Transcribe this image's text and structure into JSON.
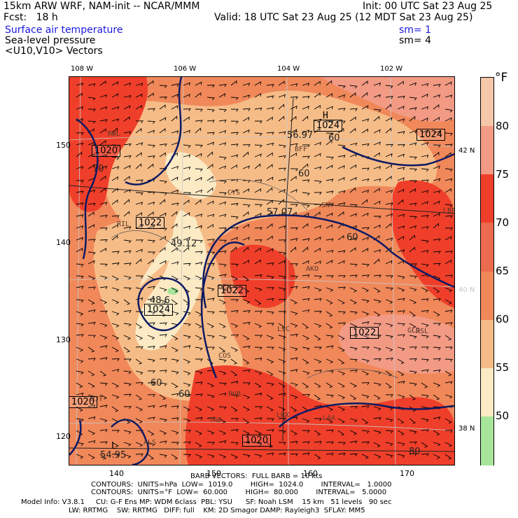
{
  "header": {
    "model_title": "15km ARW WRF, NAM-init -- NCAR/MMM",
    "fcst_label": "Fcst:   18 h",
    "init": "Init: 00 UTC Sat 23 Aug 25",
    "valid": "Valid: 18 UTC Sat 23 Aug 25 (12 MDT Sat 23 Aug 25)",
    "fields": [
      {
        "name": "Surface air temperature",
        "sm": "sm= 1",
        "color": "#1a1adc"
      },
      {
        "name": "Sea-level pressure",
        "sm": "sm= 4",
        "color": "#000000"
      },
      {
        "name": "<U10,V10> Vectors",
        "sm": "",
        "color": "#000000"
      }
    ]
  },
  "map": {
    "top_longitudes": [
      "108 W",
      "106 W",
      "104 W",
      "102 W"
    ],
    "right_latitudes": [
      "42 N",
      "40 N",
      "38 N"
    ],
    "left_grid_labels": [
      "150",
      "140",
      "130",
      "120"
    ],
    "bottom_grid_labels": [
      "140",
      "150",
      "160",
      "170"
    ],
    "station_labels": [
      "RWL",
      "BFF",
      "CYS",
      "SNY",
      "LBF",
      "GLD",
      "DEN",
      "AKO",
      "LIC",
      "RSL",
      "COS",
      "PUB",
      "LHX",
      "LAA",
      "ALS",
      "GJT",
      "RIL",
      "TAD",
      "H",
      "L"
    ],
    "pressure_boxes": [
      "1024",
      "1024",
      "1020",
      "1022",
      "1024",
      "1022",
      "1022",
      "1020",
      "1020"
    ],
    "isotherm_labels": [
      "56.97",
      "60",
      "70",
      "57.07",
      "60",
      "49.12",
      "60",
      "48.6",
      "60",
      "60",
      "54.95",
      "80"
    ],
    "colors": {
      "contour": "#0d1a63",
      "frame": "#000000",
      "gridline": "#c8c8c8"
    }
  },
  "colorbar": {
    "unit": "°F",
    "ticks": [
      "80",
      "75",
      "70",
      "65",
      "60",
      "55",
      "50"
    ],
    "bins": [
      {
        "range": ">80",
        "color": "#f7c7a9"
      },
      {
        "range": "75-80",
        "color": "#f29a84"
      },
      {
        "range": "70-75",
        "color": "#ef3f2a"
      },
      {
        "range": "65-70",
        "color": "#ec6a4d"
      },
      {
        "range": "60-65",
        "color": "#f0885a"
      },
      {
        "range": "55-60",
        "color": "#f6bc87"
      },
      {
        "range": "50-55",
        "color": "#fbeac4"
      },
      {
        "range": "<50",
        "color": "#a6e59a"
      }
    ]
  },
  "footer": {
    "barb": "BARB VECTORS:  FULL BARB = 10 kts",
    "contours_hpa": "CONTOURS:  UNITS=hPa  LOW=  1019.0        HIGH=  1024.0        INTERVAL=   1.0000",
    "contours_f": "CONTOURS:  UNITS=°F  LOW=  60.000        HIGH=  80.000        INTERVAL=   5.0000",
    "model_info_1": "Model Info: V3.8.1     CU: G-F Ens MP: WDM 6class  PBL: YSU      SF: Noah LSM    15 km   51 levels   90 sec",
    "model_info_2": "LW: RRTMG    SW: RRTMG   DIFF: full    KM: 2D Smagor DAMP: Rayleigh3  SFLAY: MM5"
  }
}
